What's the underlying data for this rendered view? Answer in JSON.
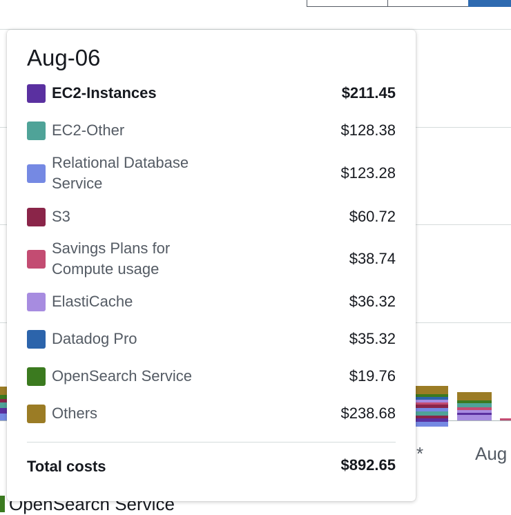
{
  "background": {
    "x_ticks": [
      "*",
      "Aug"
    ],
    "legend_item": {
      "label": "OpenSearch Service",
      "color": "#3b7a1f"
    }
  },
  "tooltip": {
    "date": "Aug-06",
    "items": [
      {
        "label": "EC2-Instances",
        "value": "$211.45",
        "color": "#5a30a0",
        "bold": true
      },
      {
        "label": "EC2-Other",
        "value": "$128.38",
        "color": "#4fa398",
        "bold": false
      },
      {
        "label": "Relational Database Service",
        "value": "$123.28",
        "color": "#7589e3",
        "bold": false
      },
      {
        "label": "S3",
        "value": "$60.72",
        "color": "#8a2549",
        "bold": false
      },
      {
        "label": "Savings Plans for Compute usage",
        "value": "$38.74",
        "color": "#c34c72",
        "bold": false
      },
      {
        "label": "ElastiCache",
        "value": "$36.32",
        "color": "#a78ce0",
        "bold": false
      },
      {
        "label": "Datadog Pro",
        "value": "$35.32",
        "color": "#2c64ab",
        "bold": false
      },
      {
        "label": "OpenSearch Service",
        "value": "$19.76",
        "color": "#3b7a1f",
        "bold": false
      },
      {
        "label": "Others",
        "value": "$238.68",
        "color": "#9b7c25",
        "bold": false
      }
    ],
    "total_label": "Total costs",
    "total_value": "$892.65"
  }
}
